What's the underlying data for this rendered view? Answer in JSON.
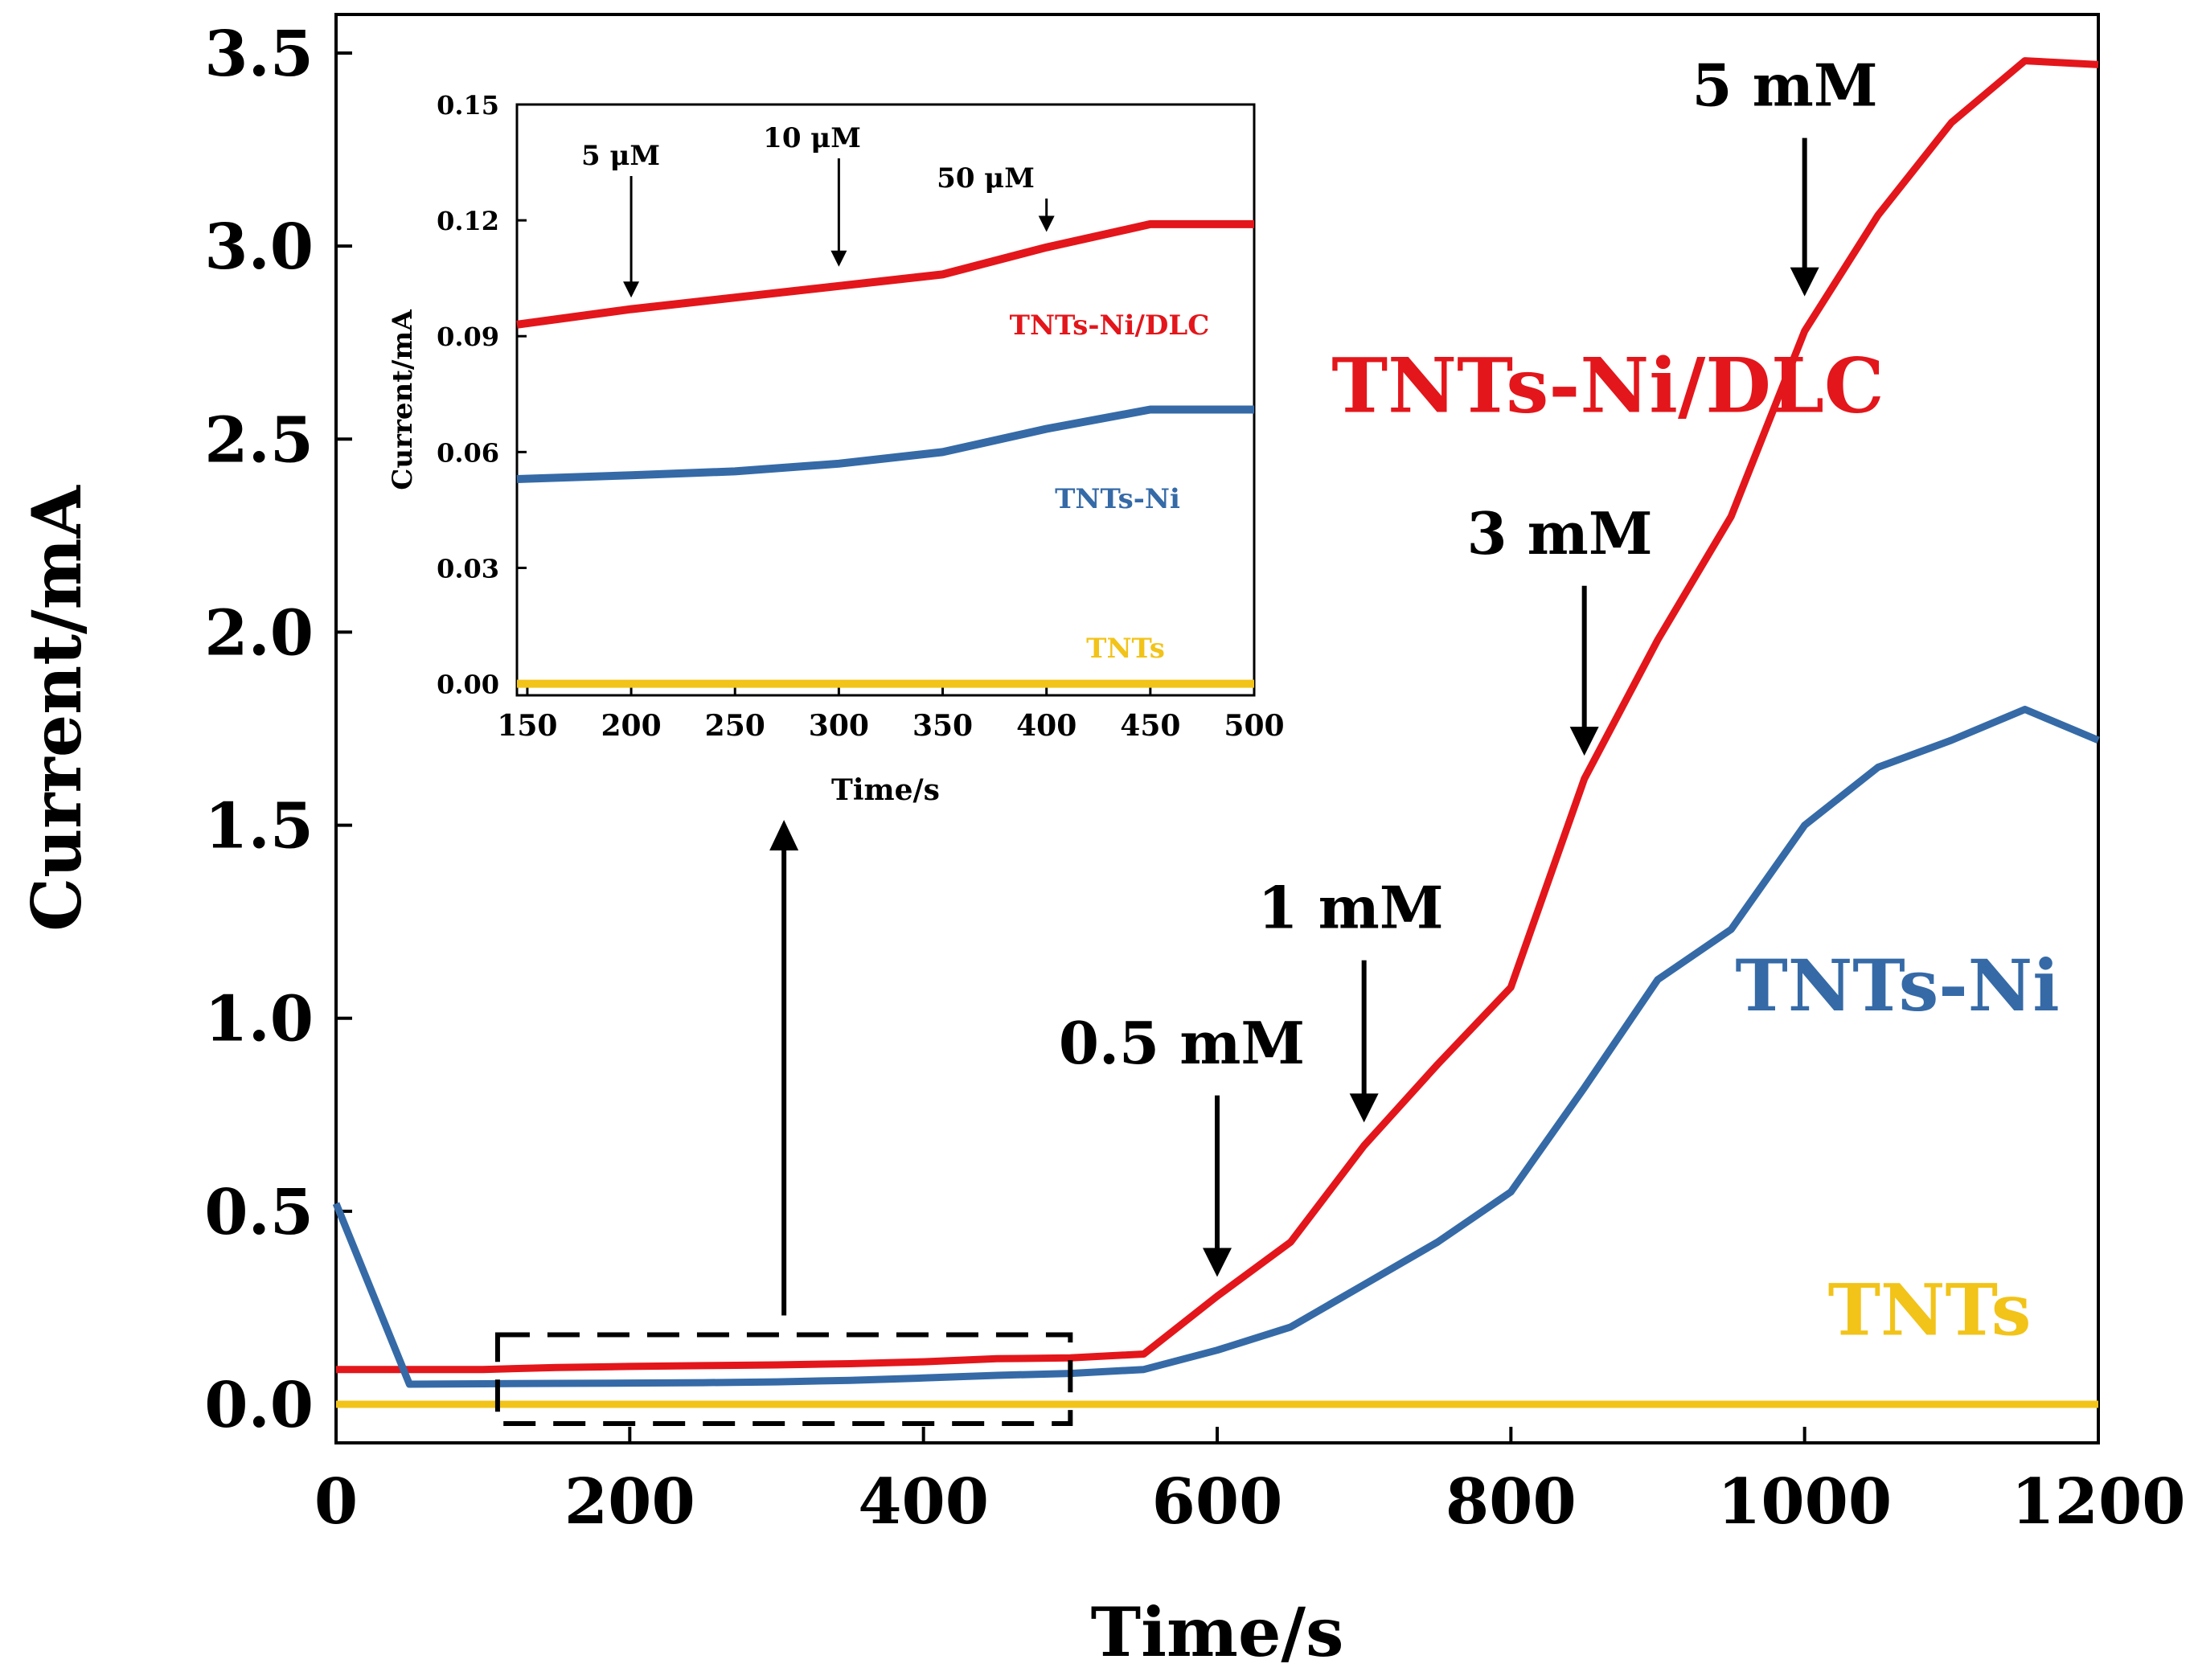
{
  "colors": {
    "tnts_ni_dlc": "#e3161b",
    "tnts_ni": "#356aa7",
    "tnts": "#f2c318",
    "axis": "#000000"
  },
  "chart_data": [
    {
      "id": "main",
      "type": "line",
      "xlabel": "Time/s",
      "ylabel": "Current/mA",
      "xlim": [
        0,
        1200
      ],
      "ylim": [
        -0.1,
        3.6
      ],
      "xticks": [
        0,
        200,
        400,
        600,
        800,
        1000,
        1200
      ],
      "yticks": [
        0.0,
        0.5,
        1.0,
        1.5,
        2.0,
        2.5,
        3.0,
        3.5
      ],
      "series": [
        {
          "name": "TNTs-Ni/DLC",
          "color_key": "tnts_ni_dlc",
          "x": [
            0,
            50,
            100,
            150,
            200,
            250,
            300,
            350,
            400,
            450,
            500,
            550,
            600,
            650,
            700,
            750,
            800,
            850,
            900,
            950,
            1000,
            1050,
            1100,
            1150,
            1200
          ],
          "y": [
            0.09,
            0.09,
            0.09,
            0.095,
            0.098,
            0.1,
            0.102,
            0.105,
            0.11,
            0.118,
            0.12,
            0.13,
            0.28,
            0.42,
            0.67,
            0.88,
            1.08,
            1.62,
            1.98,
            2.3,
            2.78,
            3.08,
            3.32,
            3.48,
            3.47
          ]
        },
        {
          "name": "TNTs-Ni",
          "color_key": "tnts_ni",
          "x": [
            0,
            50,
            100,
            150,
            200,
            250,
            300,
            350,
            400,
            450,
            500,
            550,
            600,
            650,
            700,
            750,
            800,
            850,
            900,
            950,
            1000,
            1050,
            1100,
            1150,
            1200
          ],
          "y": [
            0.52,
            0.052,
            0.053,
            0.054,
            0.055,
            0.056,
            0.058,
            0.062,
            0.068,
            0.075,
            0.08,
            0.09,
            0.14,
            0.2,
            0.31,
            0.42,
            0.55,
            0.82,
            1.1,
            1.23,
            1.5,
            1.65,
            1.72,
            1.8,
            1.72
          ]
        },
        {
          "name": "TNTs",
          "color_key": "tnts",
          "x": [
            0,
            1200
          ],
          "y": [
            0.0,
            0.0
          ]
        }
      ],
      "series_labels": [
        {
          "text": "TNTs-Ni/DLC",
          "color_key": "tnts_ni_dlc"
        },
        {
          "text": "TNTs-Ni",
          "color_key": "tnts_ni"
        },
        {
          "text": "TNTs",
          "color_key": "tnts"
        }
      ],
      "annotations": [
        {
          "text": "0.5 mM",
          "x": 600,
          "arrow_from": 0.8,
          "arrow_to": 0.33
        },
        {
          "text": "1 mM",
          "x": 700,
          "arrow_from": 1.15,
          "arrow_to": 0.73
        },
        {
          "text": "3 mM",
          "x": 850,
          "arrow_from": 2.12,
          "arrow_to": 1.68
        },
        {
          "text": "5 mM",
          "x": 1000,
          "arrow_from": 3.28,
          "arrow_to": 2.87
        }
      ],
      "zoom_box": {
        "x": [
          110,
          500
        ],
        "y": [
          -0.05,
          0.18
        ]
      }
    },
    {
      "id": "inset",
      "type": "line",
      "xlabel": "Time/s",
      "ylabel": "Current/mA",
      "xlim": [
        145,
        500
      ],
      "ylim": [
        -0.003,
        0.15
      ],
      "xticks": [
        150,
        200,
        250,
        300,
        350,
        400,
        450,
        500
      ],
      "yticks": [
        0.0,
        0.03,
        0.06,
        0.09,
        0.12,
        0.15
      ],
      "series": [
        {
          "name": "TNTs-Ni/DLC",
          "color_key": "tnts_ni_dlc",
          "x": [
            145,
            200,
            250,
            300,
            350,
            400,
            450,
            500
          ],
          "y": [
            0.093,
            0.097,
            0.1,
            0.103,
            0.106,
            0.113,
            0.119,
            0.119
          ]
        },
        {
          "name": "TNTs-Ni",
          "color_key": "tnts_ni",
          "x": [
            145,
            200,
            250,
            300,
            350,
            400,
            450,
            500
          ],
          "y": [
            0.053,
            0.054,
            0.055,
            0.057,
            0.06,
            0.066,
            0.071,
            0.071
          ]
        },
        {
          "name": "TNTs",
          "color_key": "tnts",
          "x": [
            145,
            500
          ],
          "y": [
            0.0,
            0.0
          ]
        }
      ],
      "series_labels": [
        {
          "text": "TNTs-Ni/DLC",
          "color_key": "tnts_ni_dlc"
        },
        {
          "text": "TNTs-Ni",
          "color_key": "tnts_ni"
        },
        {
          "text": "TNTs",
          "color_key": "tnts"
        }
      ],
      "annotations": [
        {
          "text": "5 μM",
          "x": 200,
          "arrow_from": 0.13,
          "arrow_to": 0.1
        },
        {
          "text": "10 μM",
          "x": 300,
          "arrow_from": 0.135,
          "arrow_to": 0.108
        },
        {
          "text": "50 μM",
          "x": 400,
          "arrow_from": 0.14,
          "arrow_to": 0.117
        }
      ]
    }
  ]
}
